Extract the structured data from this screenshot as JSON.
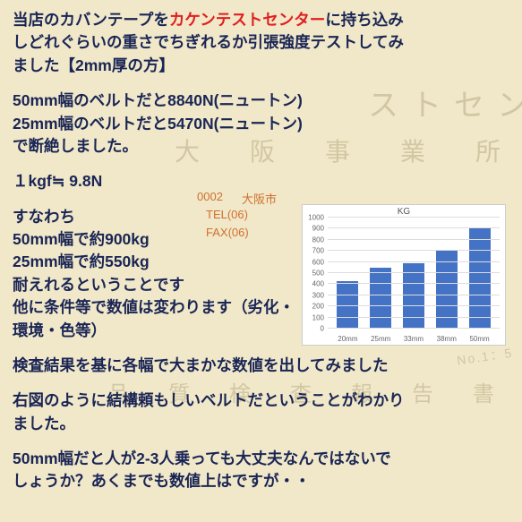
{
  "watermark": {
    "line1": "ストセン",
    "line2": "大　阪　事　業　所",
    "tel": "TEL(06)",
    "fax": "FAX(06)",
    "addr": "大阪市",
    "zip": "0002",
    "report": "品　質　検　査　報　告　書",
    "no": "No.1：5"
  },
  "intro": {
    "l1a": "当店のカバンテープを",
    "l1b": "カケンテストセンター",
    "l1c": "に持ち込み",
    "l2": "しどれぐらいの重さでちぎれるか引張強度テストしてみ",
    "l3": "ました【2mm厚の方】"
  },
  "result": {
    "l1": "50mm幅のベルトだと8840N(ニュートン)",
    "l2": "25mm幅のベルトだと5470N(ニュートン)",
    "l3": "で断絶しました。"
  },
  "conv": "１kgf≒ 9.8N",
  "summary": {
    "l1": "すなわち",
    "l2": "50mm幅で約900kg",
    "l3": "25mm幅で約550kg",
    "l4": "耐えれるということです",
    "l5": "他に条件等で数値は変わります（劣化・環境・色等）"
  },
  "p4": "検査結果を基に各幅で大まかな数値を出してみました",
  "p5": {
    "l1": "右図のように結構頼もしいベルトだということがわかり",
    "l2": "ました。"
  },
  "p6": {
    "l1": "50mm幅だと人が2-3人乗っても大丈夫なんではないで",
    "l2": "しょうか？あくまでも数値上はですが・・"
  },
  "chart": {
    "title": "KG",
    "ymax": 1000,
    "ytick_step": 100,
    "categories": [
      "20mm",
      "25mm",
      "33mm",
      "38mm",
      "50mm"
    ],
    "values": [
      430,
      550,
      590,
      700,
      900
    ],
    "bar_color": "#4472c4",
    "bg": "#ffffff",
    "grid_color": "#dddddd",
    "label_color": "#666666",
    "label_fontsize": 8,
    "title_fontsize": 10
  }
}
